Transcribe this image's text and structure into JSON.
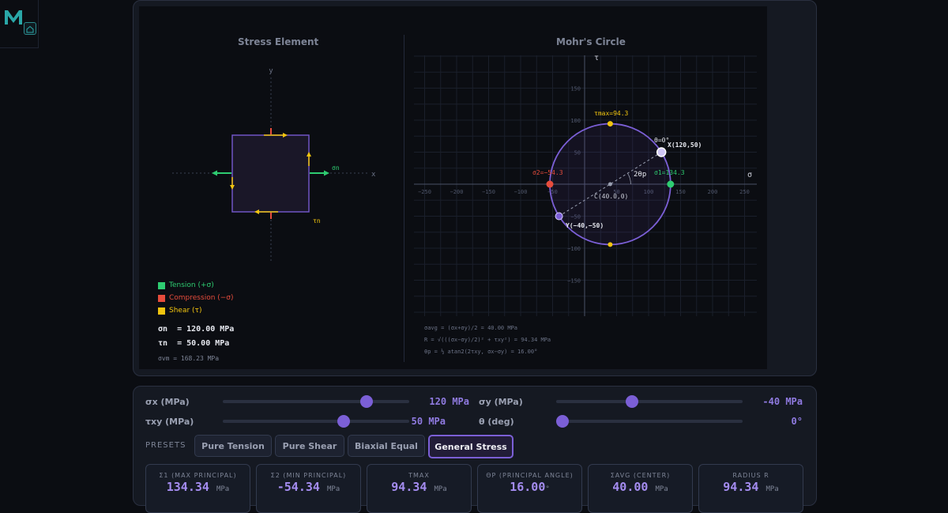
{
  "brand": {
    "logo_letter": "M"
  },
  "stress_element": {
    "title": "Stress Element",
    "axis_x": "x",
    "axis_y": "y",
    "label_sigma_n": "σn",
    "label_tau_n": "τn"
  },
  "legend": [
    {
      "label": "Tension (+σ)",
      "color": "#2ecc71"
    },
    {
      "label": "Compression (−σ)",
      "color": "#e74c3c"
    },
    {
      "label": "Shear (τ)",
      "color": "#f1c40f"
    }
  ],
  "results_text": {
    "sigma_n": "σn  = 120.00 MPa",
    "tau_n": "τn  = 50.00 MPa",
    "sigma_vm": "σvm = 168.23 MPa"
  },
  "mohr": {
    "title": "Mohr's Circle",
    "axis_sigma": "σ",
    "axis_tau": "τ",
    "x_ticks": [
      "−250",
      "−200",
      "−150",
      "−100",
      "−50",
      "50",
      "100",
      "150",
      "200",
      "250"
    ],
    "y_ticks": [
      "150",
      "100",
      "50",
      "−50",
      "−100",
      "−150"
    ],
    "center": [
      40,
      0
    ],
    "radius": 94.34,
    "point_x": [
      120,
      50
    ],
    "point_y": [
      -40,
      -50
    ],
    "labels": {
      "tau_max": "τmax=94.3",
      "theta": "θ=0°",
      "point_x": "X(120,50)",
      "sigma2": "σ2=−54.3",
      "sigma1": "σ1=134.3",
      "two_theta_p": "2θp",
      "center": "C(40.0,0)",
      "point_y": "Y(−40,−50)"
    },
    "formulas": [
      "σavg = (σx+σy)/2 = 40.00 MPa",
      "R = √(((σx−σy)/2)² + τxy²) = 94.34 MPa",
      "θp = ½ atan2(2τxy, σx−σy) = 16.00°"
    ]
  },
  "sliders": [
    {
      "label": "σx (MPa)",
      "value_text": "120 MPa",
      "fraction": 0.79
    },
    {
      "label": "σy (MPa)",
      "value_text": "-40 MPa",
      "fraction": 0.4
    },
    {
      "label": "τxy (MPa)",
      "value_text": "50 MPa",
      "fraction": 0.66
    },
    {
      "label": "θ (deg)",
      "value_text": "0°",
      "fraction": 0.0
    }
  ],
  "presets": {
    "label": "PRESETS",
    "items": [
      "Pure Tension",
      "Pure Shear",
      "Biaxial Equal",
      "General Stress"
    ],
    "active": "General Stress"
  },
  "cards": [
    {
      "label": "Σ1 (MAX PRINCIPAL)",
      "value": "134.34",
      "unit": "MPa"
    },
    {
      "label": "Σ2 (MIN PRINCIPAL)",
      "value": "-54.34",
      "unit": "MPa"
    },
    {
      "label": "ΤMAX",
      "value": "94.34",
      "unit": "MPa"
    },
    {
      "label": "ΘP (PRINCIPAL ANGLE)",
      "value": "16.00",
      "unit": "°"
    },
    {
      "label": "ΣAVG (CENTER)",
      "value": "40.00",
      "unit": "MPa"
    },
    {
      "label": "RADIUS R",
      "value": "94.34",
      "unit": "MPa"
    }
  ],
  "colors": {
    "accent": "#7b5fd6",
    "tension": "#2ecc71",
    "compression": "#e74c3c",
    "shear": "#f1c40f"
  }
}
